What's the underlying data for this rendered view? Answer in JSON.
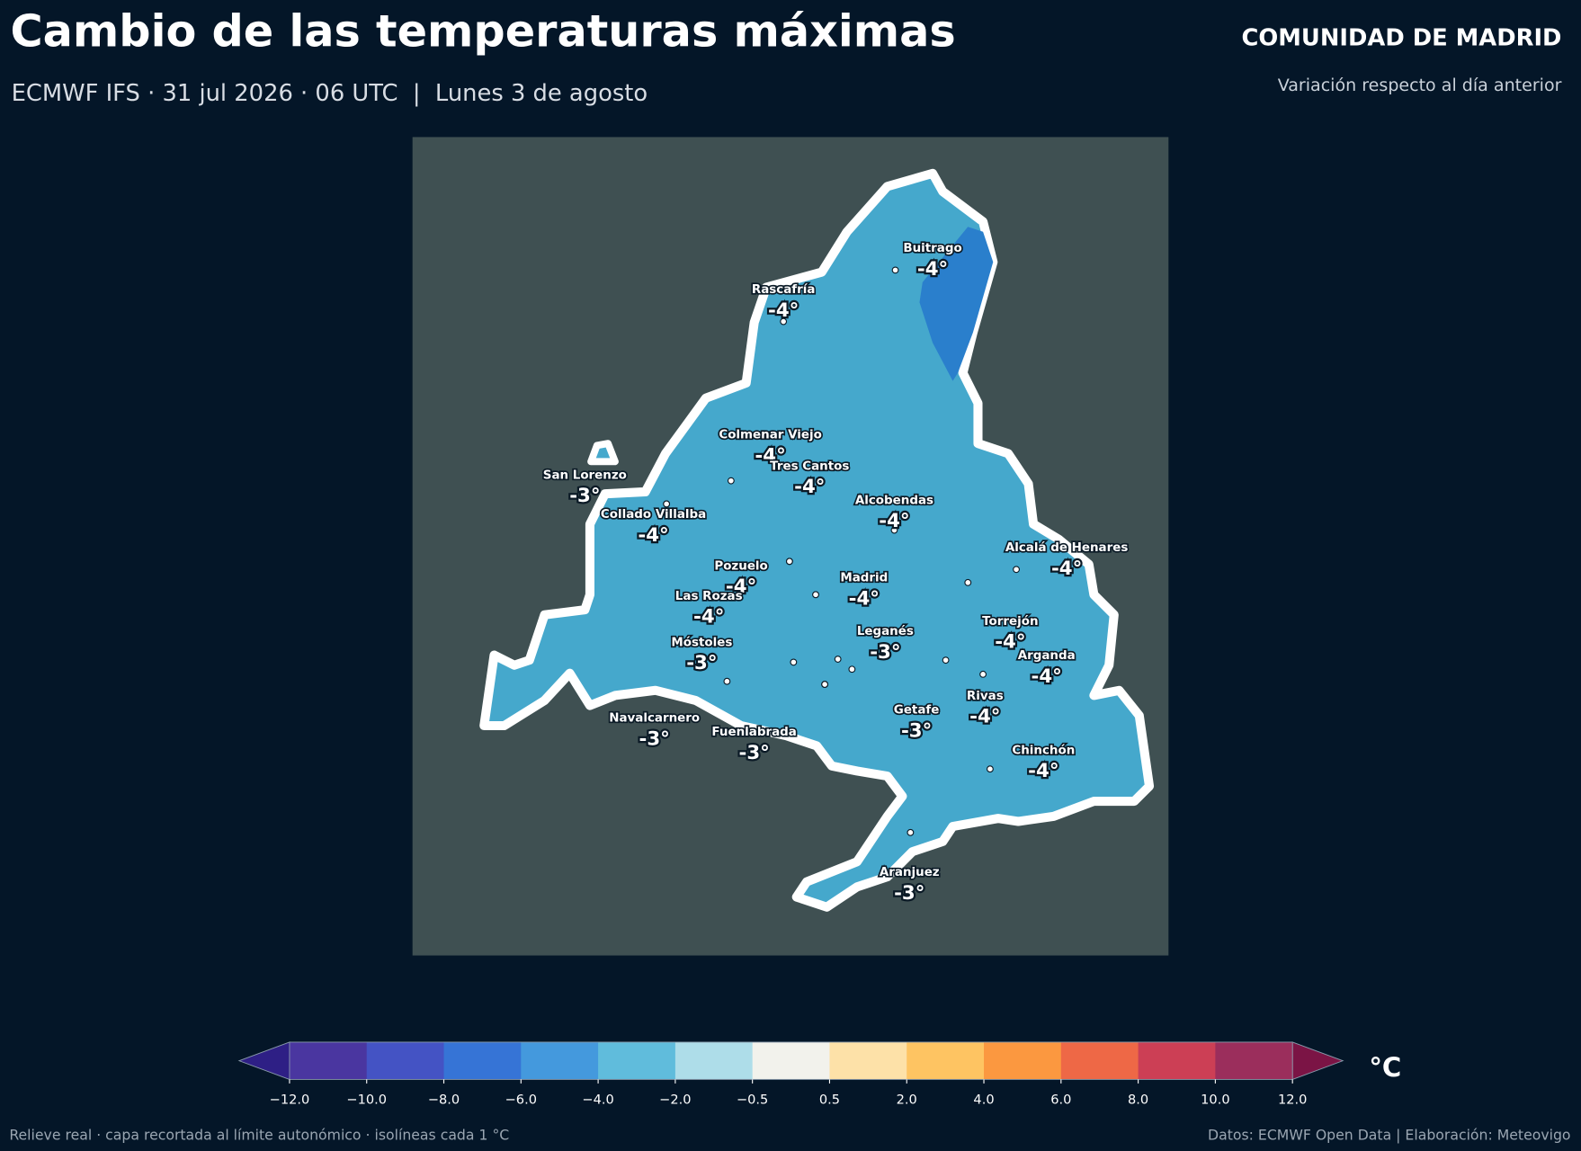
{
  "header": {
    "title": "Cambio de las temperaturas máximas",
    "subtitle": "ECMWF IFS · 31 jul 2026 · 06 UTC  |  Lunes 3 de agosto",
    "region": "COMUNIDAD DE MADRID",
    "note": "Variación respecto al día anterior"
  },
  "map": {
    "cities": [
      {
        "name": "Buitrago",
        "value": -4,
        "value_label": "-4°"
      },
      {
        "name": "Rascafría",
        "value": -4,
        "value_label": "-4°"
      },
      {
        "name": "Colmenar Viejo",
        "value": -4,
        "value_label": "-4°"
      },
      {
        "name": "Tres Cantos",
        "value": -4,
        "value_label": "-4°"
      },
      {
        "name": "San Lorenzo",
        "value": -3,
        "value_label": "-3°"
      },
      {
        "name": "Collado Villalba",
        "value": -4,
        "value_label": "-4°"
      },
      {
        "name": "Alcobendas",
        "value": -4,
        "value_label": "-4°"
      },
      {
        "name": "Alcalá de Henares",
        "value": -4,
        "value_label": "-4°"
      },
      {
        "name": "Pozuelo",
        "value": -4,
        "value_label": "-4°"
      },
      {
        "name": "Madrid",
        "value": -4,
        "value_label": "-4°"
      },
      {
        "name": "Las Rozas",
        "value": -4,
        "value_label": "-4°"
      },
      {
        "name": "Torrejón",
        "value": -4,
        "value_label": "-4°"
      },
      {
        "name": "Leganés",
        "value": -3,
        "value_label": "-3°"
      },
      {
        "name": "Móstoles",
        "value": -3,
        "value_label": "-3°"
      },
      {
        "name": "Arganda",
        "value": -4,
        "value_label": "-4°"
      },
      {
        "name": "Rivas",
        "value": -4,
        "value_label": "-4°"
      },
      {
        "name": "Getafe",
        "value": -3,
        "value_label": "-3°"
      },
      {
        "name": "Navalcarnero",
        "value": -3,
        "value_label": "-3°"
      },
      {
        "name": "Fuenlabrada",
        "value": -3,
        "value_label": "-3°"
      },
      {
        "name": "Chinchón",
        "value": -4,
        "value_label": "-4°"
      },
      {
        "name": "Aranjuez",
        "value": -3,
        "value_label": "-3°"
      }
    ]
  },
  "colorbar": {
    "colors": [
      "#4a36a0",
      "#4453c4",
      "#3674d6",
      "#4499dd",
      "#60bcdc",
      "#aedde9",
      "#f2f2ec",
      "#fde1a8",
      "#fec462",
      "#fb9840",
      "#ee6846",
      "#cc3f55",
      "#9b2e5c"
    ],
    "under_color": "#2e1f85",
    "over_color": "#7b1445",
    "ticks": [
      {
        "value": -12,
        "label": "−12.0"
      },
      {
        "value": -10,
        "label": "−10.0"
      },
      {
        "value": -8,
        "label": "−8.0"
      },
      {
        "value": -6,
        "label": "−6.0"
      },
      {
        "value": -4,
        "label": "−4.0"
      },
      {
        "value": -2,
        "label": "−2.0"
      },
      {
        "value": -0.5,
        "label": "−0.5"
      },
      {
        "value": 0.5,
        "label": "0.5"
      },
      {
        "value": 2,
        "label": "2.0"
      },
      {
        "value": 4,
        "label": "4.0"
      },
      {
        "value": 6,
        "label": "6.0"
      },
      {
        "value": 8,
        "label": "8.0"
      },
      {
        "value": 10,
        "label": "10.0"
      },
      {
        "value": 12,
        "label": "12.0"
      }
    ],
    "unit": "°C"
  },
  "footer": {
    "left": "Relieve real · capa recortada al límite autonómico · isolíneas cada 1 °C",
    "right": "Datos: ECMWF Open Data | Elaboración: Meteovigo"
  }
}
